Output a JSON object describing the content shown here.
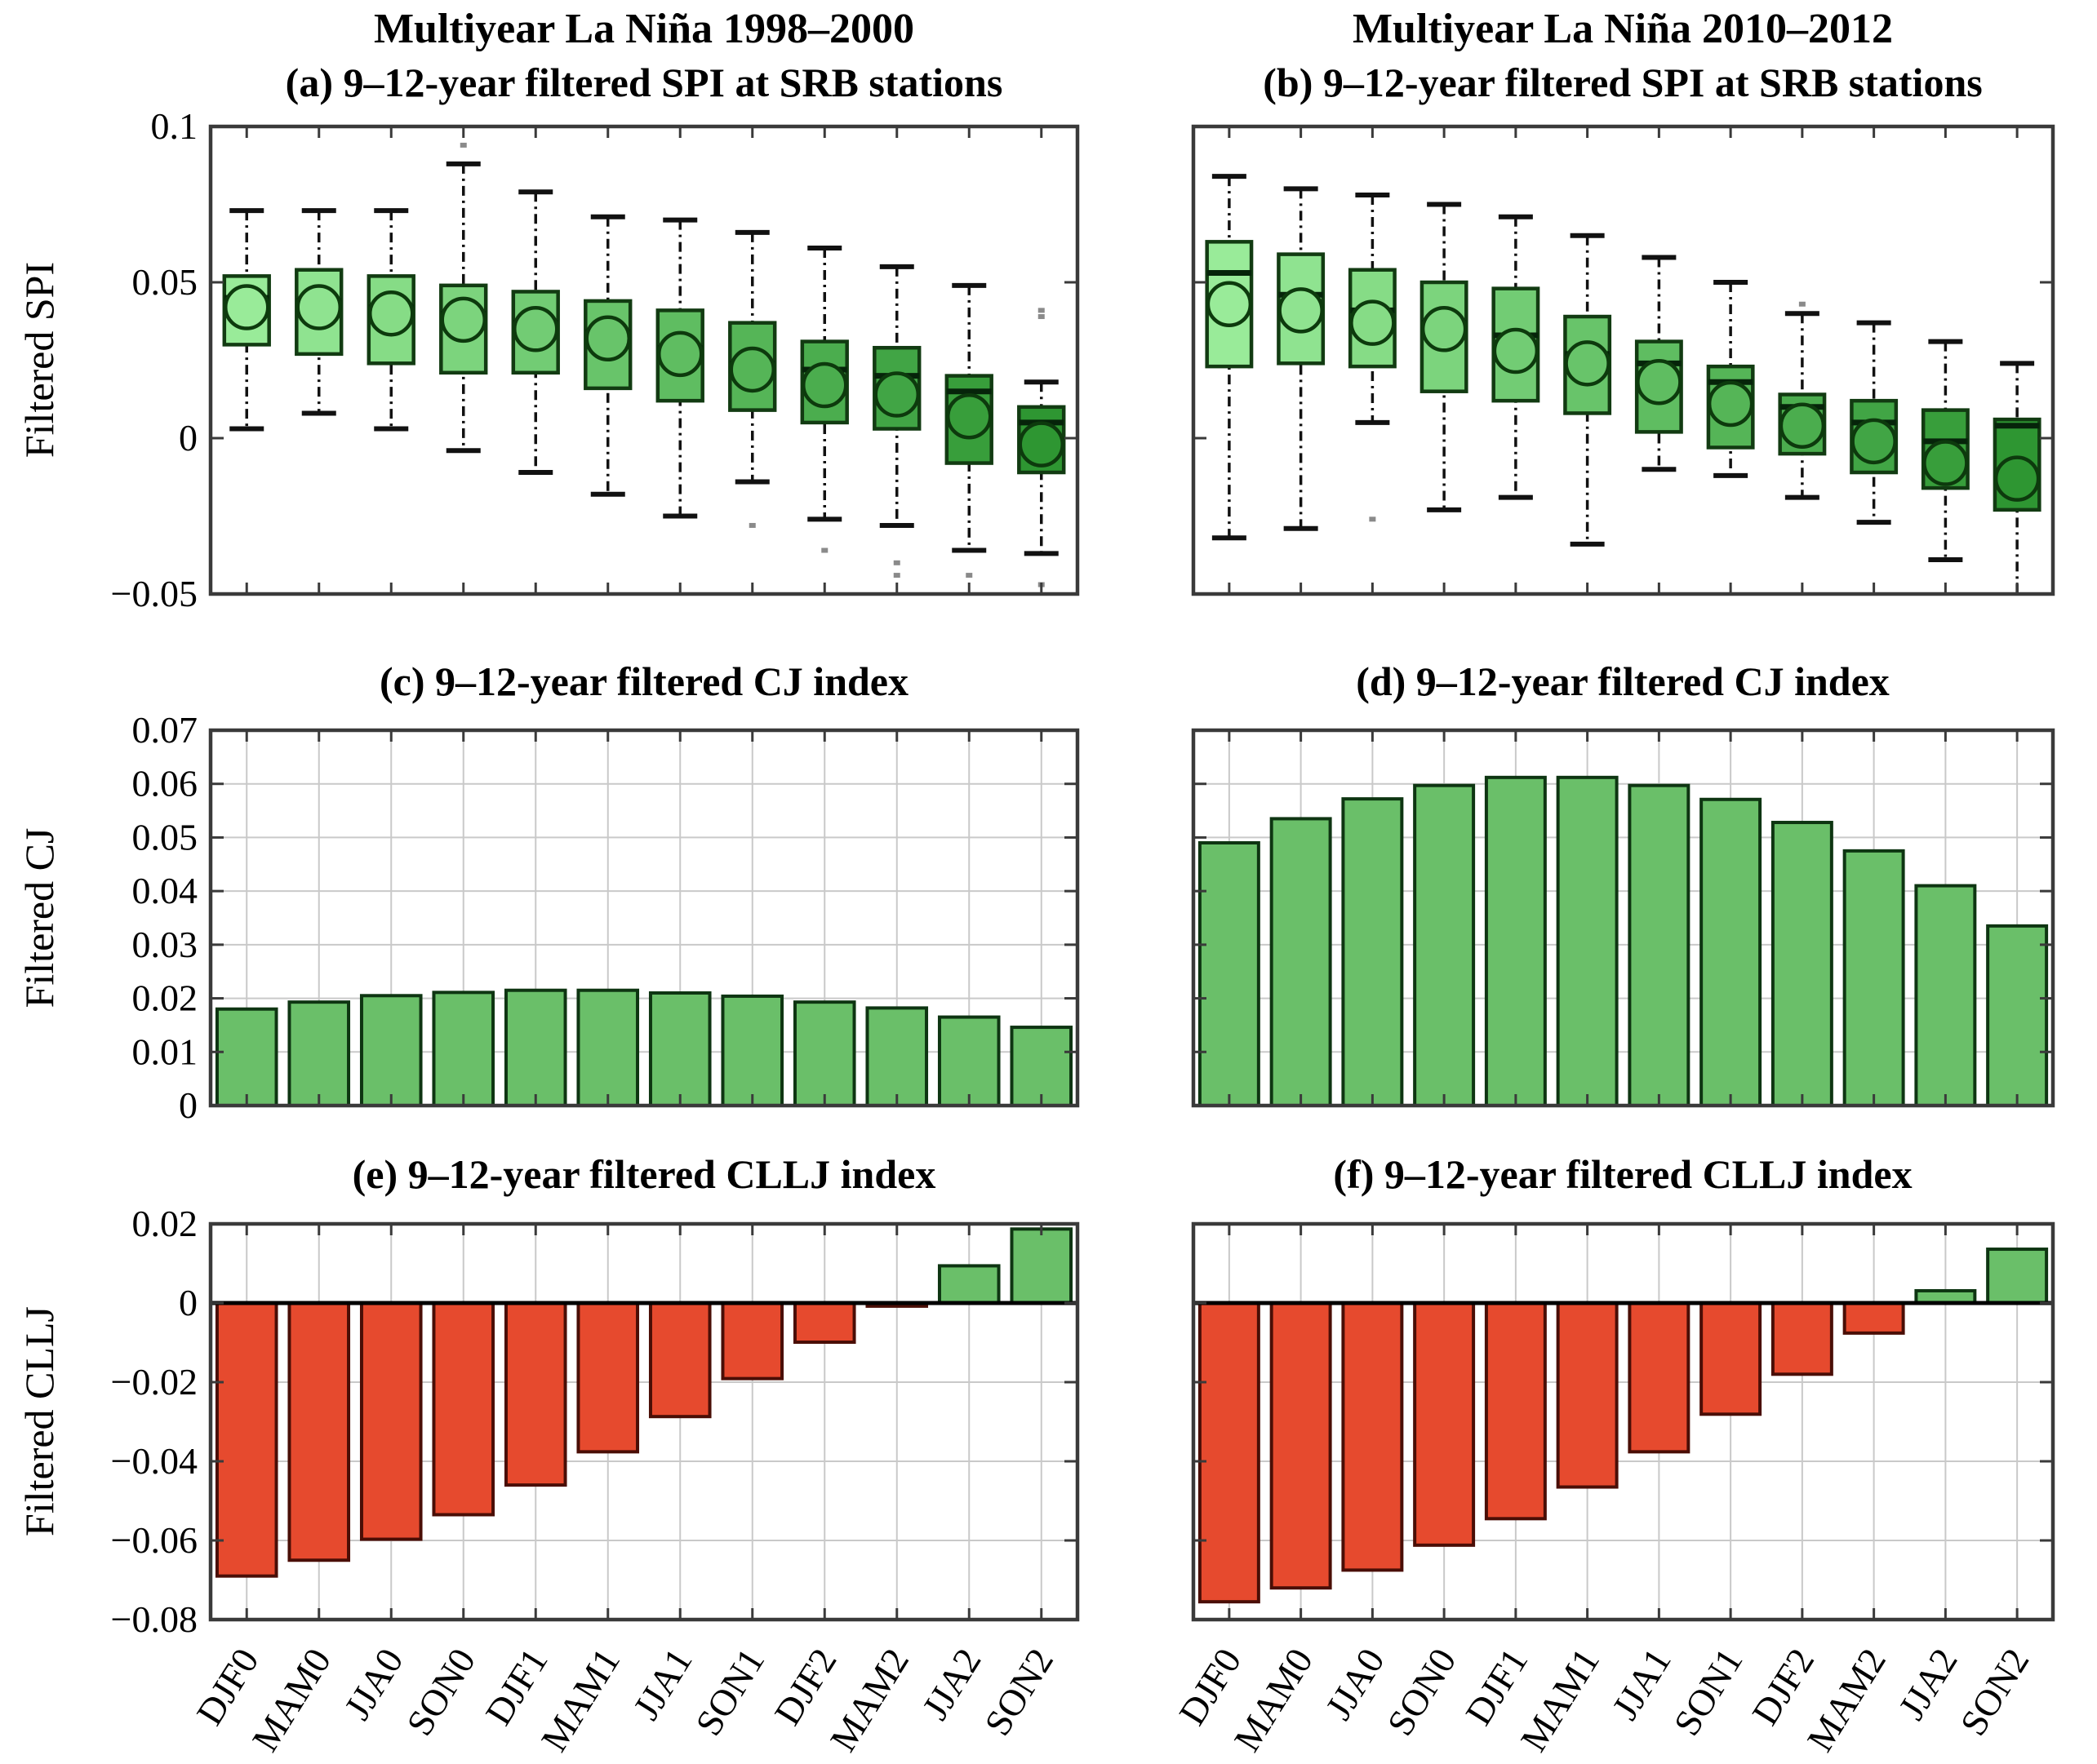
{
  "figure_titles": {
    "left_column": "Multiyear La Niña 1998–2000",
    "right_column": "Multiyear La Niña 2010–2012"
  },
  "categories": [
    "DJF0",
    "MAM0",
    "JJA0",
    "SON0",
    "DJF1",
    "MAM1",
    "JJA1",
    "SON1",
    "DJF2",
    "MAM2",
    "JJA2",
    "SON2"
  ],
  "colors": {
    "bar_green": "#6ABF69",
    "bar_red": "#E64A2E",
    "bar_border_green": "#0E3512",
    "bar_border_red": "#4A0E06",
    "box_border": "#123B12",
    "box_light": "#99EB99",
    "box_dark": "#2E9632",
    "median": "#06240A",
    "whisker": "#111111",
    "mean_stroke": "#0D3A0D",
    "outlier": "#8A8A8A",
    "grid": "#C9C9C9",
    "axis": "#3A3A3A",
    "zero_line": "#000000"
  },
  "chart_data": [
    {
      "id": "a",
      "type": "boxplot",
      "title": "(a) 9–12-year filtered SPI at SRB stations",
      "ylabel": "Filtered SPI",
      "ylim": [
        -0.05,
        0.1
      ],
      "yticks": [
        "0.1",
        "0.05",
        "0",
        "−0.05"
      ],
      "ytick_values": [
        0.1,
        0.05,
        0,
        -0.05
      ],
      "grid": false,
      "box_color_start": "#99EB99",
      "box_color_end": "#2E9632",
      "boxes": [
        {
          "category": "DJF0",
          "lo": 0.003,
          "q1": 0.03,
          "med": 0.045,
          "mean": 0.042,
          "q3": 0.052,
          "hi": 0.073
        },
        {
          "category": "MAM0",
          "lo": 0.008,
          "q1": 0.027,
          "med": 0.044,
          "mean": 0.042,
          "q3": 0.054,
          "hi": 0.073
        },
        {
          "category": "JJA0",
          "lo": 0.003,
          "q1": 0.024,
          "med": 0.042,
          "mean": 0.04,
          "q3": 0.052,
          "hi": 0.073
        },
        {
          "category": "SON0",
          "lo": -0.004,
          "q1": 0.021,
          "med": 0.04,
          "mean": 0.038,
          "q3": 0.049,
          "hi": 0.088
        },
        {
          "category": "DJF1",
          "lo": -0.011,
          "q1": 0.021,
          "med": 0.037,
          "mean": 0.035,
          "q3": 0.047,
          "hi": 0.079
        },
        {
          "category": "MAM1",
          "lo": -0.018,
          "q1": 0.016,
          "med": 0.034,
          "mean": 0.032,
          "q3": 0.044,
          "hi": 0.071
        },
        {
          "category": "JJA1",
          "lo": -0.025,
          "q1": 0.012,
          "med": 0.029,
          "mean": 0.027,
          "q3": 0.041,
          "hi": 0.07
        },
        {
          "category": "SON1",
          "lo": -0.014,
          "q1": 0.009,
          "med": 0.024,
          "mean": 0.022,
          "q3": 0.037,
          "hi": 0.066
        },
        {
          "category": "DJF2",
          "lo": -0.026,
          "q1": 0.005,
          "med": 0.022,
          "mean": 0.017,
          "q3": 0.031,
          "hi": 0.061
        },
        {
          "category": "MAM2",
          "lo": -0.028,
          "q1": 0.003,
          "med": 0.02,
          "mean": 0.014,
          "q3": 0.029,
          "hi": 0.055
        },
        {
          "category": "JJA2",
          "lo": -0.036,
          "q1": -0.008,
          "med": 0.015,
          "mean": 0.007,
          "q3": 0.02,
          "hi": 0.049
        },
        {
          "category": "SON2",
          "lo": -0.037,
          "q1": -0.011,
          "med": 0.005,
          "mean": -0.002,
          "q3": 0.01,
          "hi": 0.018
        }
      ],
      "outliers": [
        {
          "category": "SON0",
          "values": [
            0.094
          ]
        },
        {
          "category": "SON1",
          "values": [
            -0.028
          ]
        },
        {
          "category": "DJF2",
          "values": [
            -0.036
          ]
        },
        {
          "category": "MAM2",
          "values": [
            -0.04,
            -0.044
          ]
        },
        {
          "category": "JJA2",
          "values": [
            -0.044
          ]
        },
        {
          "category": "SON2",
          "values": [
            0.041,
            0.039,
            -0.047
          ]
        }
      ]
    },
    {
      "id": "b",
      "type": "boxplot",
      "title": "(b) 9–12-year filtered SPI at SRB stations",
      "ylabel": "Filtered SPI",
      "ylim": [
        -0.05,
        0.1
      ],
      "yticks": [
        "0.1",
        "0.05",
        "0",
        "−0.05"
      ],
      "ytick_values": [
        0.1,
        0.05,
        0,
        -0.05
      ],
      "grid": false,
      "box_color_start": "#99EB99",
      "box_color_end": "#2E9632",
      "boxes": [
        {
          "category": "DJF0",
          "lo": -0.032,
          "q1": 0.023,
          "med": 0.053,
          "mean": 0.043,
          "q3": 0.063,
          "hi": 0.084
        },
        {
          "category": "MAM0",
          "lo": -0.029,
          "q1": 0.024,
          "med": 0.046,
          "mean": 0.041,
          "q3": 0.059,
          "hi": 0.08
        },
        {
          "category": "JJA0",
          "lo": 0.005,
          "q1": 0.023,
          "med": 0.041,
          "mean": 0.037,
          "q3": 0.054,
          "hi": 0.078
        },
        {
          "category": "SON0",
          "lo": -0.023,
          "q1": 0.015,
          "med": 0.037,
          "mean": 0.035,
          "q3": 0.05,
          "hi": 0.075
        },
        {
          "category": "DJF1",
          "lo": -0.019,
          "q1": 0.012,
          "med": 0.033,
          "mean": 0.028,
          "q3": 0.048,
          "hi": 0.071
        },
        {
          "category": "MAM1",
          "lo": -0.034,
          "q1": 0.008,
          "med": 0.027,
          "mean": 0.024,
          "q3": 0.039,
          "hi": 0.065
        },
        {
          "category": "JJA1",
          "lo": -0.01,
          "q1": 0.002,
          "med": 0.024,
          "mean": 0.018,
          "q3": 0.031,
          "hi": 0.058
        },
        {
          "category": "SON1",
          "lo": -0.012,
          "q1": -0.003,
          "med": 0.018,
          "mean": 0.011,
          "q3": 0.023,
          "hi": 0.05
        },
        {
          "category": "DJF2",
          "lo": -0.019,
          "q1": -0.005,
          "med": 0.01,
          "mean": 0.004,
          "q3": 0.014,
          "hi": 0.04
        },
        {
          "category": "MAM2",
          "lo": -0.027,
          "q1": -0.011,
          "med": 0.005,
          "mean": -0.001,
          "q3": 0.012,
          "hi": 0.037
        },
        {
          "category": "JJA2",
          "lo": -0.039,
          "q1": -0.016,
          "med": -0.001,
          "mean": -0.008,
          "q3": 0.009,
          "hi": 0.031
        },
        {
          "category": "SON2",
          "lo": -0.052,
          "q1": -0.023,
          "med": 0.004,
          "mean": -0.013,
          "q3": 0.006,
          "hi": 0.024
        }
      ],
      "outliers": [
        {
          "category": "JJA0",
          "values": [
            -0.026
          ]
        },
        {
          "category": "DJF2",
          "values": [
            0.043
          ]
        }
      ]
    },
    {
      "id": "c",
      "type": "bar",
      "title": "(c) 9–12-year filtered CJ index",
      "ylabel": "Filtered CJ",
      "ylim": [
        0,
        0.07
      ],
      "yticks": [
        "0.07",
        "0.06",
        "0.05",
        "0.04",
        "0.03",
        "0.02",
        "0.01",
        "0"
      ],
      "ytick_values": [
        0.07,
        0.06,
        0.05,
        0.04,
        0.03,
        0.02,
        0.01,
        0
      ],
      "grid": true,
      "bar_color_positive": "#6ABF69",
      "bar_color_negative": "#E64A2E",
      "values": [
        0.018,
        0.0193,
        0.0205,
        0.0211,
        0.0215,
        0.0215,
        0.021,
        0.0204,
        0.0193,
        0.0182,
        0.0165,
        0.0146
      ]
    },
    {
      "id": "d",
      "type": "bar",
      "title": "(d) 9–12-year filtered CJ index",
      "ylabel": "Filtered CJ",
      "ylim": [
        0,
        0.07
      ],
      "yticks": [
        "0.07",
        "0.06",
        "0.05",
        "0.04",
        "0.03",
        "0.02",
        "0.01",
        "0"
      ],
      "ytick_values": [
        0.07,
        0.06,
        0.05,
        0.04,
        0.03,
        0.02,
        0.01,
        0
      ],
      "grid": true,
      "bar_color_positive": "#6ABF69",
      "bar_color_negative": "#E64A2E",
      "values": [
        0.049,
        0.0535,
        0.0572,
        0.0597,
        0.0612,
        0.0612,
        0.0597,
        0.0571,
        0.0528,
        0.0475,
        0.041,
        0.0335
      ]
    },
    {
      "id": "e",
      "type": "bar",
      "title": "(e) 9–12-year filtered CLLJ index",
      "ylabel": "Filtered CLLJ",
      "ylim": [
        -0.08,
        0.02
      ],
      "yticks": [
        "0.02",
        "0",
        "−0.02",
        "−0.04",
        "−0.06",
        "−0.08"
      ],
      "ytick_values": [
        0.02,
        0,
        -0.02,
        -0.04,
        -0.06,
        -0.08
      ],
      "grid": true,
      "bar_color_positive": "#6ABF69",
      "bar_color_negative": "#E64A2E",
      "values": [
        -0.069,
        -0.065,
        -0.0597,
        -0.0535,
        -0.046,
        -0.0376,
        -0.0287,
        -0.0191,
        -0.0099,
        -0.0008,
        0.0094,
        0.0187
      ]
    },
    {
      "id": "f",
      "type": "bar",
      "title": "(f) 9–12-year filtered CLLJ index",
      "ylabel": "Filtered CLLJ",
      "ylim": [
        -0.08,
        0.02
      ],
      "yticks": [
        "0.02",
        "0",
        "−0.02",
        "−0.04",
        "−0.06",
        "−0.08"
      ],
      "ytick_values": [
        0.02,
        0,
        -0.02,
        -0.04,
        -0.06,
        -0.08
      ],
      "grid": true,
      "bar_color_positive": "#6ABF69",
      "bar_color_negative": "#E64A2E",
      "values": [
        -0.0755,
        -0.072,
        -0.0675,
        -0.0612,
        -0.0545,
        -0.0465,
        -0.0376,
        -0.0281,
        -0.018,
        -0.0076,
        0.0031,
        0.0136
      ]
    }
  ]
}
